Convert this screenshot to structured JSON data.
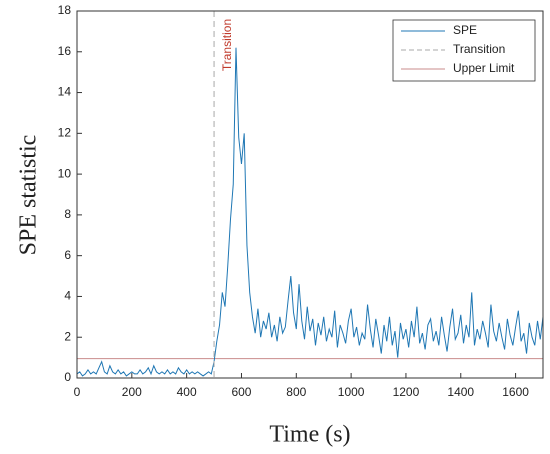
{
  "chart_data": {
    "type": "line",
    "xlabel": "Time (s)",
    "ylabel": "SPE statistic",
    "xlim": [
      0,
      1700
    ],
    "ylim": [
      0,
      18
    ],
    "xticks": [
      0,
      200,
      400,
      600,
      800,
      1000,
      1200,
      1400,
      1600
    ],
    "yticks": [
      0,
      2,
      4,
      6,
      8,
      10,
      12,
      14,
      16,
      18
    ],
    "legend": "top-right",
    "annotation": "Transition",
    "x": [
      0,
      10,
      20,
      30,
      40,
      50,
      60,
      70,
      80,
      90,
      100,
      110,
      120,
      130,
      140,
      150,
      160,
      170,
      180,
      190,
      200,
      210,
      220,
      230,
      240,
      250,
      260,
      270,
      280,
      290,
      300,
      310,
      320,
      330,
      340,
      350,
      360,
      370,
      380,
      390,
      400,
      410,
      420,
      430,
      440,
      450,
      460,
      470,
      480,
      490,
      500,
      510,
      520,
      530,
      540,
      550,
      560,
      570,
      580,
      590,
      600,
      610,
      620,
      630,
      640,
      650,
      660,
      670,
      680,
      690,
      700,
      710,
      720,
      730,
      740,
      750,
      760,
      770,
      780,
      790,
      800,
      810,
      820,
      830,
      840,
      850,
      860,
      870,
      880,
      890,
      900,
      910,
      920,
      930,
      940,
      950,
      960,
      970,
      980,
      990,
      1000,
      1010,
      1020,
      1030,
      1040,
      1050,
      1060,
      1070,
      1080,
      1090,
      1100,
      1110,
      1120,
      1130,
      1140,
      1150,
      1160,
      1170,
      1180,
      1190,
      1200,
      1210,
      1220,
      1230,
      1240,
      1250,
      1260,
      1270,
      1280,
      1290,
      1300,
      1310,
      1320,
      1330,
      1340,
      1350,
      1360,
      1370,
      1380,
      1390,
      1400,
      1410,
      1420,
      1430,
      1440,
      1450,
      1460,
      1470,
      1480,
      1490,
      1500,
      1510,
      1520,
      1530,
      1540,
      1550,
      1560,
      1570,
      1580,
      1590,
      1600,
      1610,
      1620,
      1630,
      1640,
      1650,
      1660,
      1670,
      1680,
      1690,
      1700
    ],
    "series": [
      {
        "name": "SPE",
        "color": "#1f77b4",
        "values": [
          0.2,
          0.3,
          0.1,
          0.2,
          0.4,
          0.2,
          0.3,
          0.2,
          0.5,
          0.8,
          0.3,
          0.2,
          0.6,
          0.3,
          0.2,
          0.4,
          0.2,
          0.3,
          0.1,
          0.2,
          0.3,
          0.2,
          0.2,
          0.4,
          0.2,
          0.3,
          0.5,
          0.2,
          0.6,
          0.3,
          0.2,
          0.3,
          0.2,
          0.4,
          0.2,
          0.3,
          0.2,
          0.5,
          0.3,
          0.2,
          0.4,
          0.2,
          0.3,
          0.2,
          0.3,
          0.2,
          0.1,
          0.2,
          0.3,
          0.2,
          0.8,
          1.8,
          2.6,
          4.2,
          3.5,
          5.5,
          7.8,
          9.5,
          16.2,
          11.8,
          10.5,
          12.0,
          6.5,
          4.2,
          3.0,
          2.2,
          3.4,
          2.0,
          2.8,
          2.4,
          3.2,
          2.0,
          2.6,
          1.8,
          3.0,
          2.2,
          2.5,
          3.8,
          5.0,
          3.2,
          2.4,
          4.6,
          2.8,
          1.9,
          3.5,
          2.3,
          2.9,
          1.6,
          2.7,
          2.1,
          3.0,
          1.8,
          2.4,
          2.0,
          3.3,
          1.5,
          2.6,
          2.2,
          1.7,
          2.8,
          3.4,
          2.0,
          2.5,
          1.6,
          2.2,
          1.9,
          3.6,
          2.4,
          1.5,
          2.9,
          2.1,
          1.2,
          2.6,
          1.8,
          3.0,
          1.6,
          2.3,
          1.0,
          2.7,
          1.9,
          2.4,
          1.5,
          2.8,
          2.0,
          3.5,
          1.7,
          2.2,
          1.4,
          2.6,
          2.9,
          1.8,
          2.3,
          1.6,
          3.0,
          2.1,
          1.3,
          2.5,
          3.4,
          1.9,
          2.2,
          3.1,
          1.7,
          2.6,
          2.0,
          4.2,
          1.6,
          2.4,
          1.9,
          2.8,
          2.2,
          1.5,
          3.6,
          2.3,
          1.8,
          2.7,
          2.0,
          1.4,
          2.9,
          2.1,
          1.6,
          2.5,
          3.3,
          1.8,
          2.2,
          1.2,
          2.7,
          2.0,
          1.6,
          2.8,
          1.9,
          3.0
        ]
      }
    ],
    "vlines": [
      {
        "name": "Transition",
        "x": 500,
        "color": "#a9a9a9"
      }
    ],
    "hlines": [
      {
        "name": "Upper Limit",
        "value": 0.95,
        "color": "#c98b8b"
      }
    ],
    "annotation_color": "#c0392b"
  }
}
